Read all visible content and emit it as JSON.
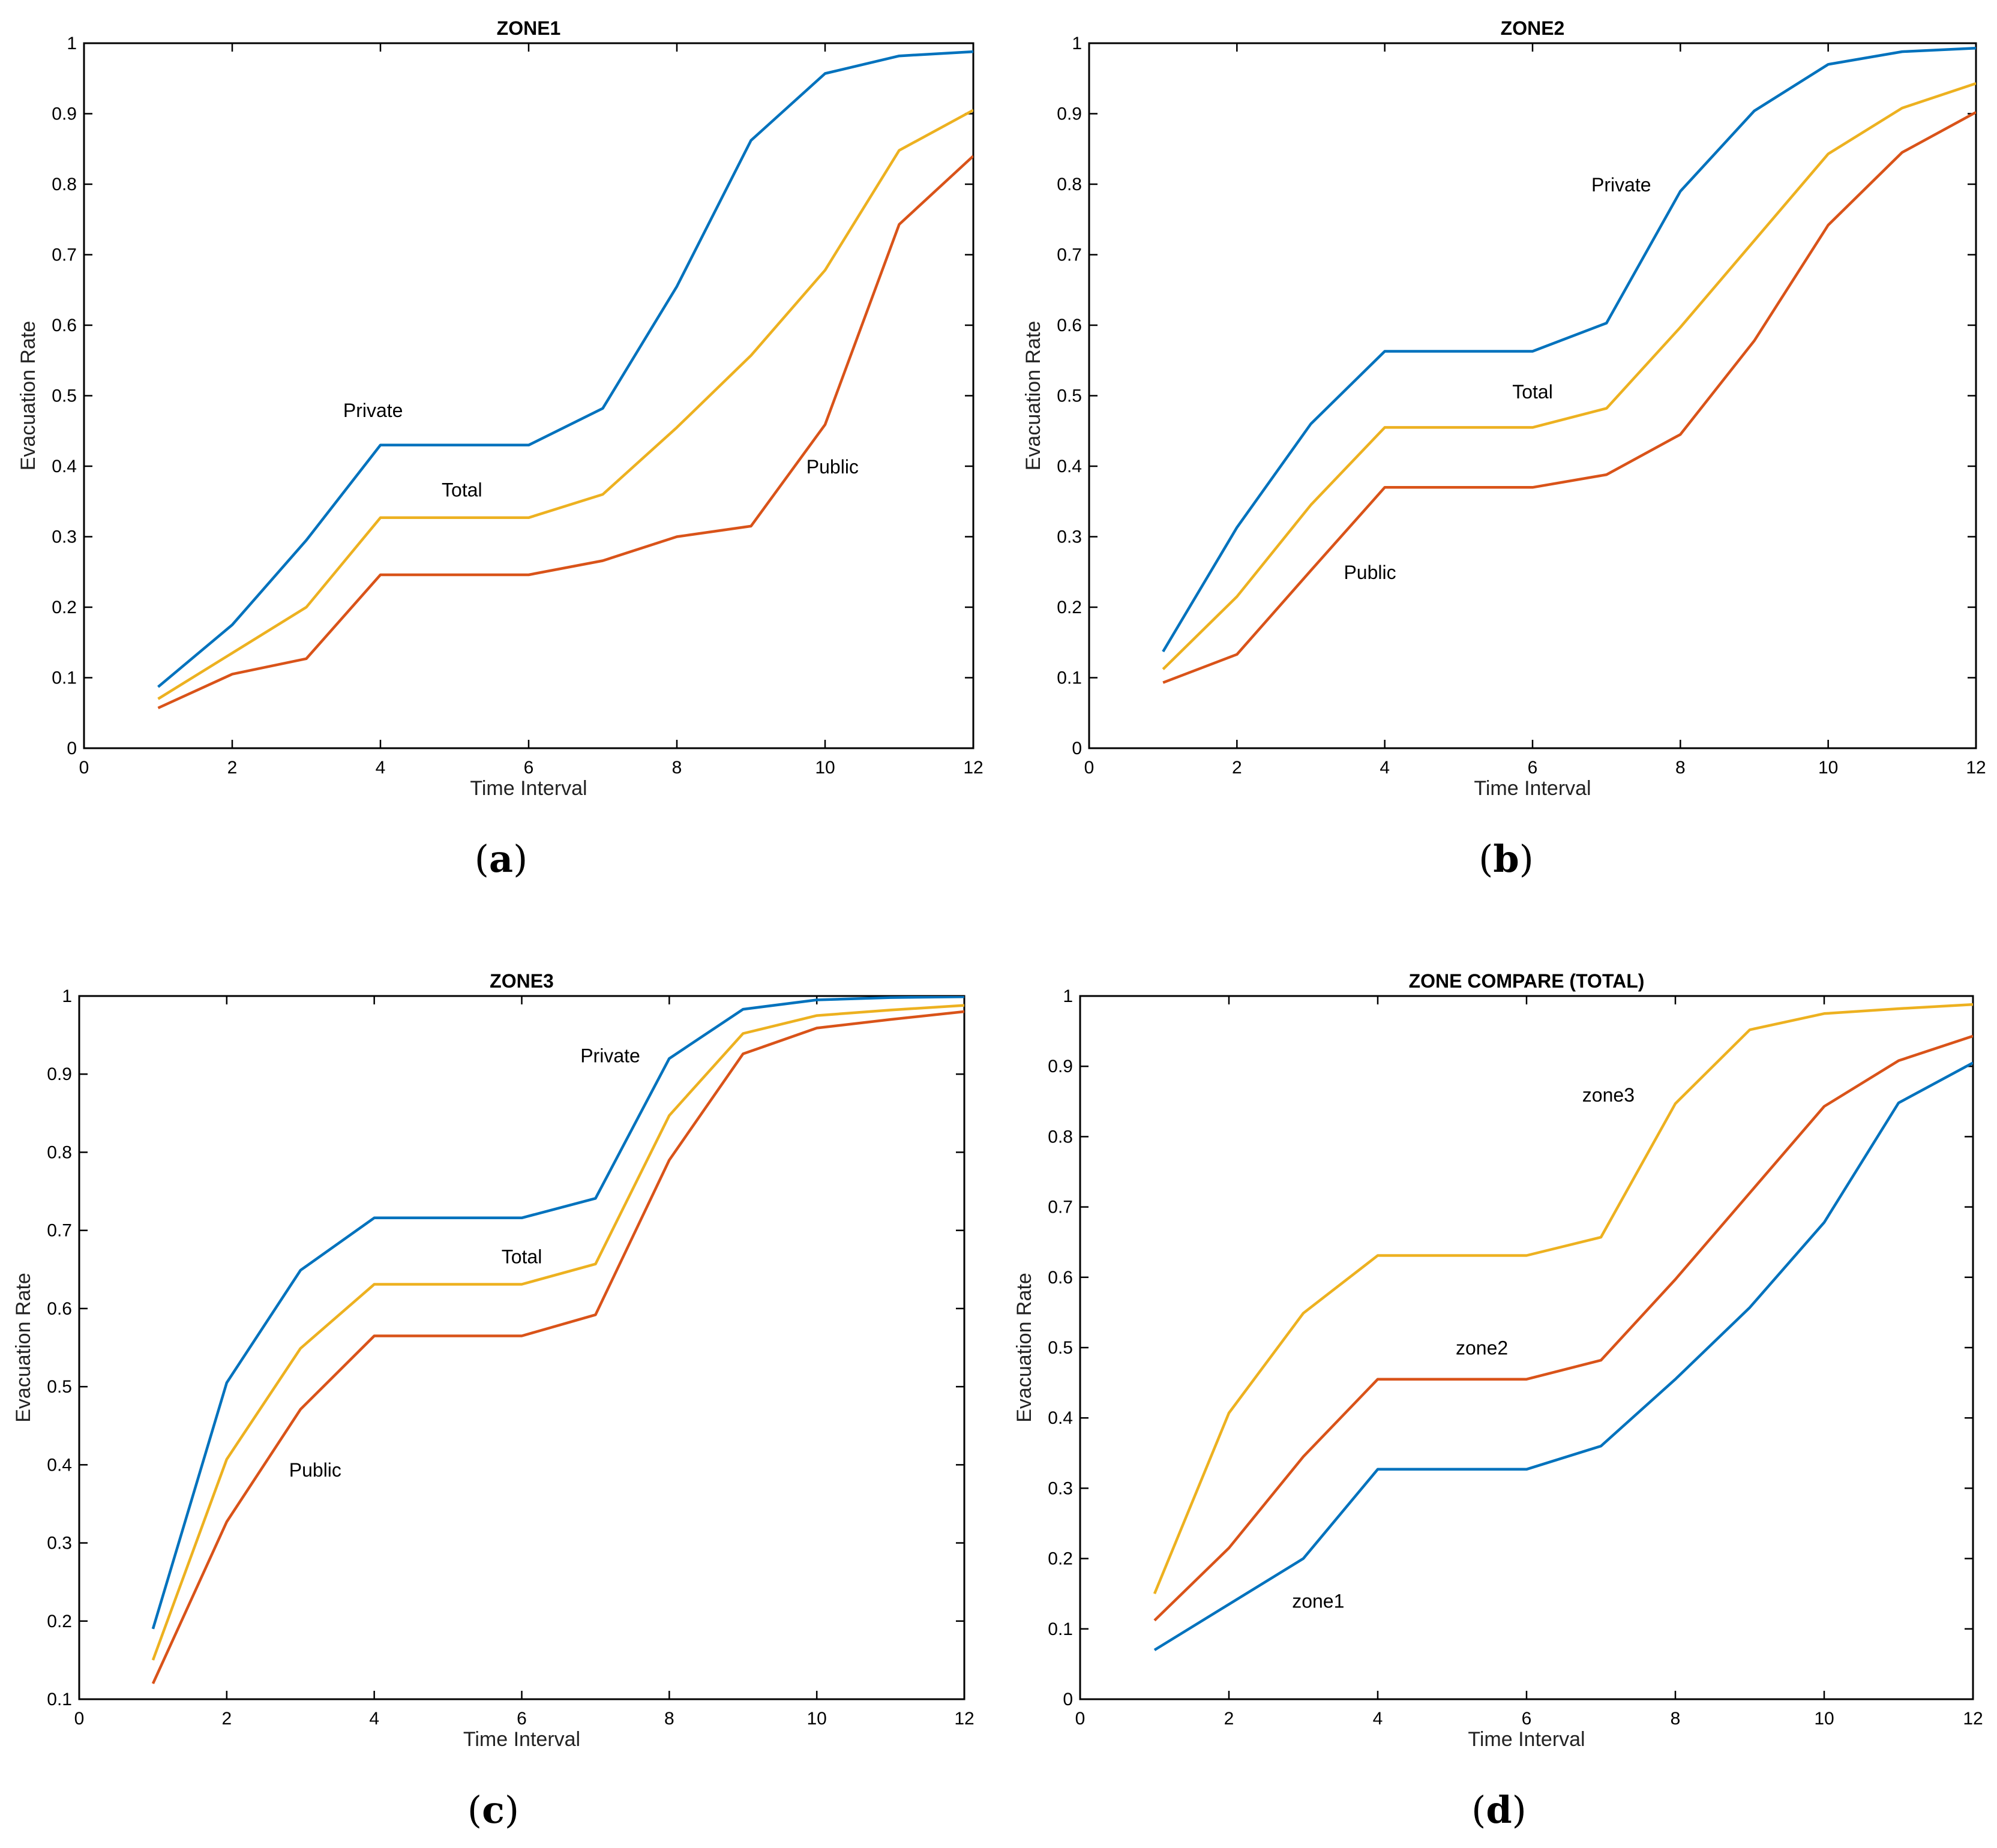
{
  "colors": {
    "private": "#0072BD",
    "public": "#D95319",
    "total": "#EDB120",
    "axis": "#000000"
  },
  "chart_data": [
    {
      "type": "line",
      "title": "ZONE1",
      "caption": "a",
      "xlabel": "Time Interval",
      "ylabel": "Evacuation Rate",
      "xlim": [
        0,
        12
      ],
      "ylim": [
        0,
        1
      ],
      "xticks": [
        0,
        2,
        4,
        6,
        8,
        10,
        12
      ],
      "yticks": [
        0,
        0.1,
        0.2,
        0.3,
        0.4,
        0.5,
        0.6,
        0.7,
        0.8,
        0.9,
        1
      ],
      "x": [
        1,
        2,
        3,
        4,
        5,
        6,
        7,
        8,
        9,
        10,
        11,
        12
      ],
      "series": [
        {
          "name": "Private",
          "color": "#0072BD",
          "values": [
            0.087,
            0.175,
            0.295,
            0.43,
            0.43,
            0.43,
            0.482,
            0.655,
            0.862,
            0.957,
            0.982,
            0.988
          ]
        },
        {
          "name": "Total",
          "color": "#EDB120",
          "values": [
            0.07,
            0.135,
            0.2,
            0.327,
            0.327,
            0.327,
            0.36,
            0.455,
            0.557,
            0.678,
            0.848,
            0.905
          ]
        },
        {
          "name": "Public",
          "color": "#D95319",
          "values": [
            0.057,
            0.105,
            0.127,
            0.246,
            0.246,
            0.246,
            0.266,
            0.3,
            0.315,
            0.459,
            0.743,
            0.84
          ]
        }
      ],
      "annotations": [
        {
          "text": "Private",
          "x": 3.9,
          "y": 0.47
        },
        {
          "text": "Total",
          "x": 5.1,
          "y": 0.357
        },
        {
          "text": "Public",
          "x": 10.1,
          "y": 0.39
        }
      ]
    },
    {
      "type": "line",
      "title": "ZONE2",
      "caption": "b",
      "xlabel": "Time Interval",
      "ylabel": "Evacuation Rate",
      "xlim": [
        0,
        12
      ],
      "ylim": [
        0,
        1
      ],
      "xticks": [
        0,
        2,
        4,
        6,
        8,
        10,
        12
      ],
      "yticks": [
        0,
        0.1,
        0.2,
        0.3,
        0.4,
        0.5,
        0.6,
        0.7,
        0.8,
        0.9,
        1
      ],
      "x": [
        1,
        2,
        3,
        4,
        5,
        6,
        7,
        8,
        9,
        10,
        11,
        12
      ],
      "series": [
        {
          "name": "Private",
          "color": "#0072BD",
          "values": [
            0.137,
            0.313,
            0.46,
            0.563,
            0.563,
            0.563,
            0.603,
            0.79,
            0.904,
            0.97,
            0.988,
            0.993
          ]
        },
        {
          "name": "Total",
          "color": "#EDB120",
          "values": [
            0.112,
            0.215,
            0.345,
            0.455,
            0.455,
            0.455,
            0.482,
            0.597,
            0.72,
            0.843,
            0.908,
            0.943
          ]
        },
        {
          "name": "Public",
          "color": "#D95319",
          "values": [
            0.093,
            0.133,
            0.252,
            0.37,
            0.37,
            0.37,
            0.388,
            0.445,
            0.578,
            0.742,
            0.845,
            0.902
          ]
        }
      ],
      "annotations": [
        {
          "text": "Private",
          "x": 7.2,
          "y": 0.79
        },
        {
          "text": "Total",
          "x": 6.0,
          "y": 0.496
        },
        {
          "text": "Public",
          "x": 3.8,
          "y": 0.24
        }
      ]
    },
    {
      "type": "line",
      "title": "ZONE3",
      "caption": "c",
      "xlabel": "Time Interval",
      "ylabel": "Evacuation Rate",
      "xlim": [
        0,
        12
      ],
      "ylim": [
        0.1,
        1
      ],
      "xticks": [
        0,
        2,
        4,
        6,
        8,
        10,
        12
      ],
      "yticks": [
        0.1,
        0.2,
        0.3,
        0.4,
        0.5,
        0.6,
        0.7,
        0.8,
        0.9,
        1
      ],
      "x": [
        1,
        2,
        3,
        4,
        5,
        6,
        7,
        8,
        9,
        10,
        11,
        12
      ],
      "series": [
        {
          "name": "Private",
          "color": "#0072BD",
          "values": [
            0.19,
            0.505,
            0.649,
            0.716,
            0.716,
            0.716,
            0.741,
            0.92,
            0.983,
            0.995,
            0.998,
            0.999
          ]
        },
        {
          "name": "Total",
          "color": "#EDB120",
          "values": [
            0.15,
            0.407,
            0.549,
            0.631,
            0.631,
            0.631,
            0.657,
            0.847,
            0.952,
            0.975,
            0.982,
            0.988
          ]
        },
        {
          "name": "Public",
          "color": "#D95319",
          "values": [
            0.12,
            0.327,
            0.471,
            0.565,
            0.565,
            0.565,
            0.592,
            0.79,
            0.926,
            0.959,
            0.97,
            0.98
          ]
        }
      ],
      "annotations": [
        {
          "text": "Private",
          "x": 7.2,
          "y": 0.915
        },
        {
          "text": "Total",
          "x": 6.0,
          "y": 0.658
        },
        {
          "text": "Public",
          "x": 3.2,
          "y": 0.385
        }
      ]
    },
    {
      "type": "line",
      "title": "ZONE COMPARE (TOTAL)",
      "caption": "d",
      "xlabel": "Time Interval",
      "ylabel": "Evacuation Rate",
      "xlim": [
        0,
        12
      ],
      "ylim": [
        0,
        1
      ],
      "xticks": [
        0,
        2,
        4,
        6,
        8,
        10,
        12
      ],
      "yticks": [
        0,
        0.1,
        0.2,
        0.3,
        0.4,
        0.5,
        0.6,
        0.7,
        0.8,
        0.9,
        1
      ],
      "x": [
        1,
        2,
        3,
        4,
        5,
        6,
        7,
        8,
        9,
        10,
        11,
        12
      ],
      "series": [
        {
          "name": "zone3",
          "color": "#EDB120",
          "values": [
            0.15,
            0.407,
            0.549,
            0.631,
            0.631,
            0.631,
            0.657,
            0.847,
            0.952,
            0.975,
            0.982,
            0.988
          ]
        },
        {
          "name": "zone2",
          "color": "#D95319",
          "values": [
            0.112,
            0.215,
            0.345,
            0.455,
            0.455,
            0.455,
            0.482,
            0.597,
            0.72,
            0.843,
            0.908,
            0.943
          ]
        },
        {
          "name": "zone1",
          "color": "#0072BD",
          "values": [
            0.07,
            0.135,
            0.2,
            0.327,
            0.327,
            0.327,
            0.36,
            0.455,
            0.557,
            0.678,
            0.848,
            0.905
          ]
        }
      ],
      "annotations": [
        {
          "text": "zone3",
          "x": 7.1,
          "y": 0.85
        },
        {
          "text": "zone2",
          "x": 5.4,
          "y": 0.49
        },
        {
          "text": "zone1",
          "x": 3.2,
          "y": 0.13
        }
      ]
    }
  ]
}
